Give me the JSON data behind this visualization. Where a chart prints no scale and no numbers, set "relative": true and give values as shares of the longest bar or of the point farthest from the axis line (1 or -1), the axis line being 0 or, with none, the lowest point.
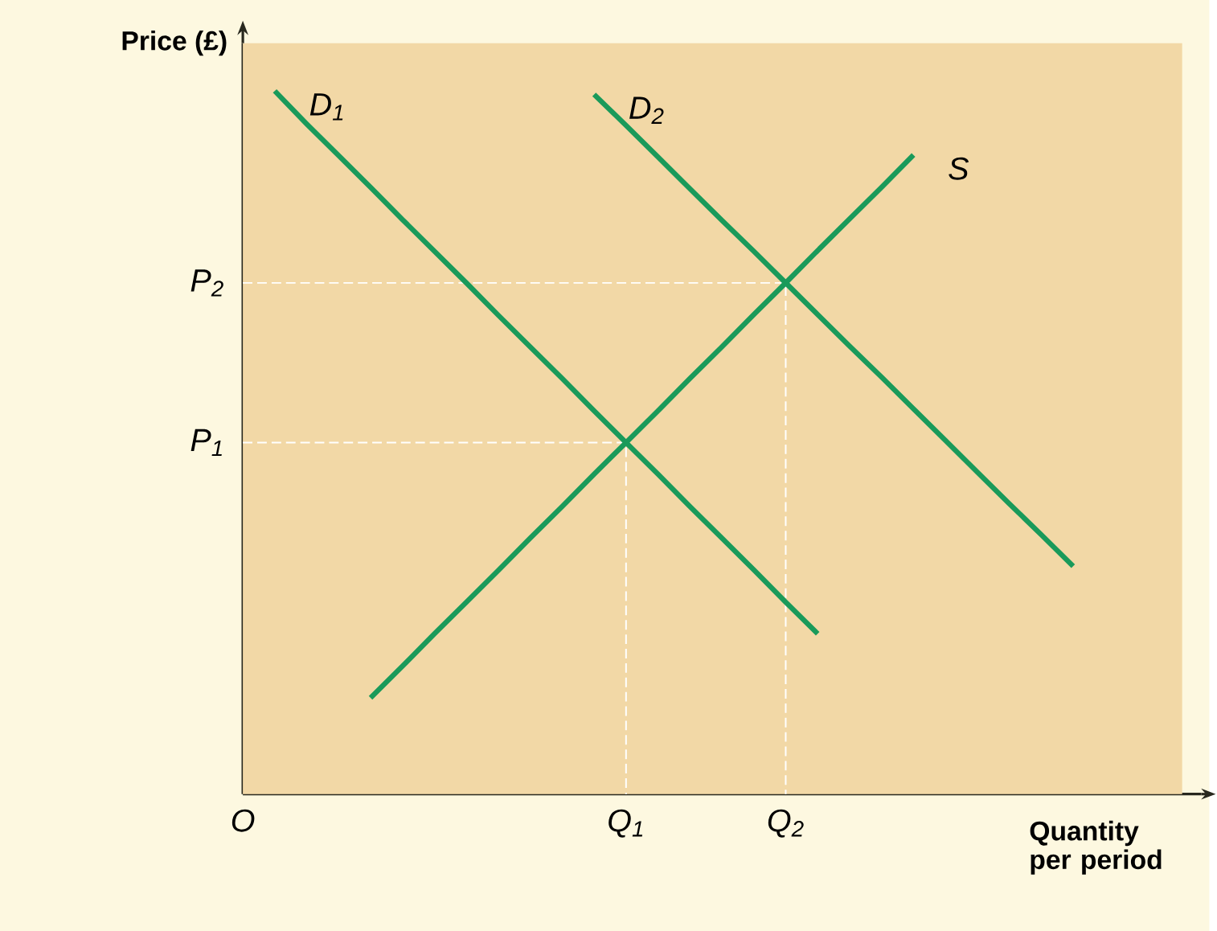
{
  "chart_data": {
    "type": "line",
    "relative": true,
    "xlabel": "Quantity per period",
    "ylabel": "Price (£)",
    "marker": "none",
    "categories": [
      "O",
      null,
      null,
      null,
      null,
      null,
      null,
      null,
      null,
      null,
      null,
      null,
      "Q$_{1}$",
      null,
      null,
      null,
      null,
      "Q$_{2}$",
      null,
      null,
      null,
      null,
      null,
      null,
      null,
      null,
      null,
      null,
      null,
      null
    ],
    "ref_lines": [
      {
        "axis": "y",
        "value": 0.5,
        "label": "P$_{1}$",
        "color": "#ffffff",
        "line_style": "dashed"
      },
      {
        "axis": "y",
        "value": 0.727,
        "label": "P$_{2}$",
        "color": "#ffffff",
        "line_style": "dashed"
      }
    ],
    "series": [
      {
        "name": "D$_{1}$",
        "color": "#1a9a5a",
        "line_style": "solid",
        "values": [
          null,
          1,
          0.953,
          0.908,
          0.863,
          0.817,
          0.772,
          0.727,
          0.681,
          0.636,
          0.591,
          0.545,
          0.5,
          0.455,
          0.409,
          0.364,
          0.319,
          0.273,
          0.228,
          null,
          null,
          null,
          null,
          null,
          null,
          null,
          null,
          null,
          null,
          null
        ]
      },
      {
        "name": "D$_{2}$",
        "color": "#1a9a5a",
        "line_style": "solid",
        "values": [
          null,
          null,
          null,
          null,
          null,
          null,
          null,
          null,
          null,
          null,
          null,
          0.995,
          0.951,
          0.906,
          0.861,
          0.816,
          0.772,
          0.727,
          0.682,
          0.637,
          0.593,
          0.548,
          0.503,
          0.458,
          0.413,
          0.369,
          0.324,
          null,
          null,
          null
        ]
      },
      {
        "name": "S",
        "color": "#1a9a5a",
        "line_style": "solid",
        "values": [
          null,
          null,
          null,
          null,
          0.137,
          0.182,
          0.228,
          0.273,
          0.318,
          0.364,
          0.409,
          0.455,
          0.5,
          0.545,
          0.591,
          0.636,
          0.682,
          0.727,
          0.773,
          0.818,
          0.863,
          0.909,
          null,
          null,
          null,
          null,
          null,
          null,
          null,
          null
        ]
      }
    ]
  }
}
